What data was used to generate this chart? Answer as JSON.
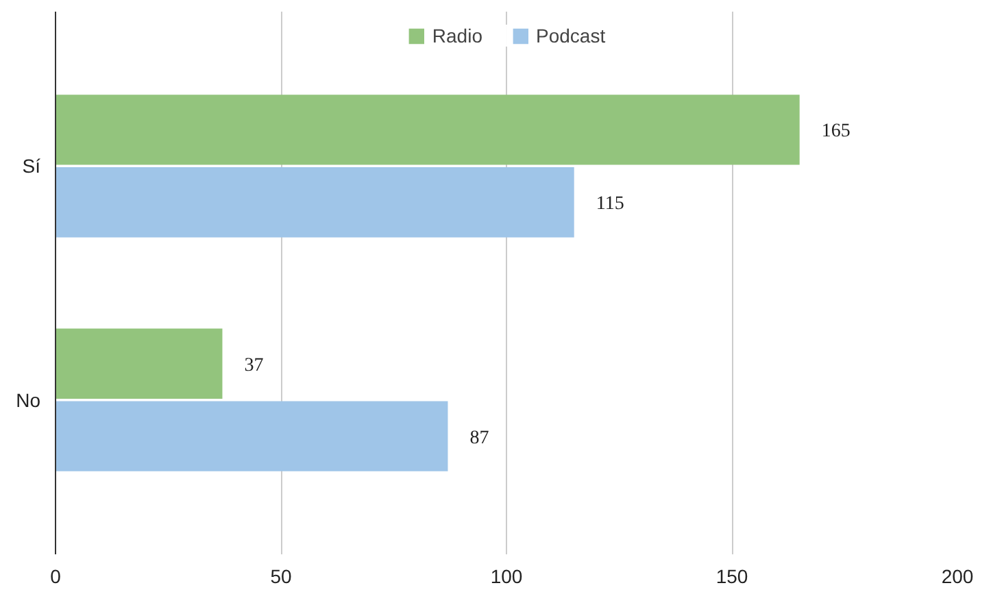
{
  "chart_data": {
    "type": "bar",
    "orientation": "horizontal",
    "categories": [
      "Sí",
      "No"
    ],
    "series": [
      {
        "name": "Radio",
        "color": "#93c47d",
        "values": [
          165,
          37
        ]
      },
      {
        "name": "Podcast",
        "color": "#9fc5e8",
        "values": [
          115,
          87
        ]
      }
    ],
    "xlim": [
      0,
      200
    ],
    "xticks": [
      0,
      50,
      100,
      150,
      200
    ],
    "grid": "x",
    "legend": "top",
    "data_labels": true
  }
}
